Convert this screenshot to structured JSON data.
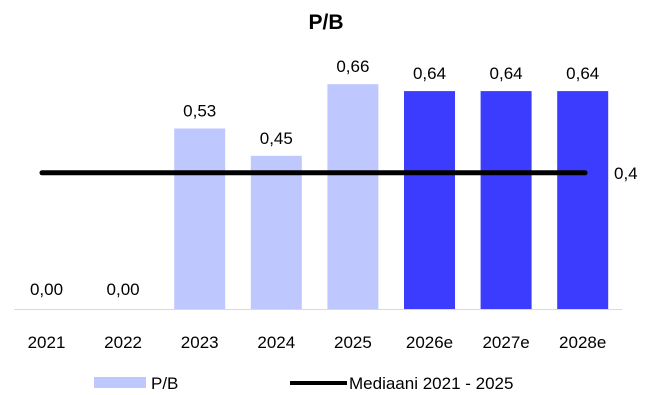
{
  "chart_data": {
    "type": "bar",
    "title": "P/B",
    "categories": [
      "2021",
      "2022",
      "2023",
      "2024",
      "2025",
      "2026e",
      "2027e",
      "2028e"
    ],
    "series": [
      {
        "name": "P/B",
        "values": [
          0.0,
          0.0,
          0.53,
          0.45,
          0.66,
          0.64,
          0.64,
          0.64
        ],
        "value_labels": [
          "0,00",
          "0,00",
          "0,53",
          "0,45",
          "0,66",
          "0,64",
          "0,64",
          "0,64"
        ],
        "colors": [
          "#bfc7ff",
          "#bfc7ff",
          "#bfc7ff",
          "#bfc7ff",
          "#bfc7ff",
          "#3c3cff",
          "#3c3cff",
          "#3c3cff"
        ]
      },
      {
        "name": "Mediaani 2021 - 2025",
        "type": "line",
        "value": 0.4,
        "value_label": "0,4",
        "color": "#000000"
      }
    ],
    "ylim": [
      0,
      0.74
    ],
    "grid": false,
    "legend": "bottom"
  }
}
